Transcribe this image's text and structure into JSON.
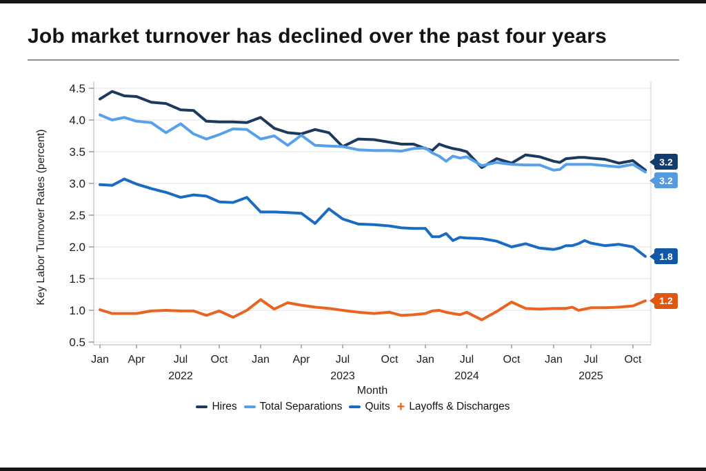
{
  "frame": {
    "title": "Job market turnover has declined over the past four years"
  },
  "chart": {
    "y_axis": {
      "label": "Key Labor Turnover Rates (percent)",
      "tick_labels": [
        "4.5",
        "4.0",
        "3.5",
        "3.0",
        "2.5",
        "2.0",
        "1.5",
        "1.0",
        "0.5"
      ],
      "tick_values": [
        4.5,
        4.0,
        3.5,
        3.0,
        2.5,
        2.0,
        1.5,
        1.0,
        0.5
      ]
    },
    "x_axis": {
      "label": "Month",
      "ticks": [
        {
          "label": "Jan",
          "month": 0
        },
        {
          "label": "Apr",
          "month": 3
        },
        {
          "label": "Jul",
          "month": 6
        },
        {
          "label": "Oct",
          "month": 9
        },
        {
          "label": "Jan",
          "month": 12
        },
        {
          "label": "Apr",
          "month": 15
        },
        {
          "label": "Jul",
          "month": 18
        },
        {
          "label": "Oct",
          "month": 21
        },
        {
          "label": "Jan",
          "month": 24
        },
        {
          "label": "Jul",
          "month": 30
        },
        {
          "label": "Oct",
          "month": 33
        },
        {
          "label": "Jan",
          "month": 36
        },
        {
          "label": "Jul",
          "month": 42
        },
        {
          "label": "Oct",
          "month": 45
        }
      ],
      "years": [
        {
          "label": "2022",
          "month": 6
        },
        {
          "label": "2023",
          "month": 18
        },
        {
          "label": "2024",
          "month": 30
        },
        {
          "label": "2025",
          "month": 42
        }
      ]
    },
    "legend": [
      {
        "name": "Hires",
        "marker": "line",
        "color": "#1c3a5e"
      },
      {
        "name": "Total Separations",
        "marker": "line",
        "color": "#57a1ea"
      },
      {
        "name": "Quits",
        "marker": "line",
        "color": "#1a6cc2"
      },
      {
        "name": "Layoffs & Discharges",
        "marker": "plus",
        "color": "#e96420"
      }
    ]
  },
  "chart_data": {
    "type": "line",
    "title": "Job market turnover has declined over the past four years",
    "xlabel": "Month",
    "ylabel": "Key Labor Turnover Rates (percent)",
    "ylim": [
      0.5,
      4.5
    ],
    "grid": true,
    "legend_position": "bottom",
    "x": [
      "Jan 2022",
      "Feb 2022",
      "Mar 2022",
      "Apr 2022",
      "May 2022",
      "Jun 2022",
      "Jul 2022",
      "Aug 2022",
      "Sep 2022",
      "Oct 2022",
      "Nov 2022",
      "Dec 2022",
      "Jan 2023",
      "Feb 2023",
      "Mar 2023",
      "Apr 2023",
      "May 2023",
      "Jun 2023",
      "Jul 2023",
      "Aug 2023",
      "Sep 2023",
      "Oct 2023",
      "Nov 2023",
      "Dec 2023",
      "Jan 2024",
      "Feb 2024",
      "Mar 2024",
      "Apr 2024",
      "May 2024",
      "Jun 2024",
      "Jul 2024",
      "Aug 2024",
      "Sep 2024",
      "Oct 2024",
      "Nov 2024",
      "Dec 2024",
      "Jan 2025",
      "Feb 2025",
      "Mar 2025",
      "Apr 2025",
      "May 2025",
      "Jun 2025",
      "Jul 2025",
      "Aug 2025",
      "Sep 2025",
      "Oct 2025",
      "Nov 2025"
    ],
    "series": [
      {
        "name": "Hires",
        "color": "#1c3a5e",
        "label_bg": "#103d6d",
        "end_label": "3.2",
        "values": [
          4.33,
          4.45,
          4.38,
          4.37,
          4.28,
          4.26,
          4.16,
          4.15,
          3.98,
          3.97,
          3.97,
          3.96,
          4.04,
          3.87,
          3.8,
          3.78,
          3.85,
          3.8,
          3.58,
          3.7,
          3.69,
          3.65,
          3.62,
          3.62,
          3.55,
          3.52,
          3.62,
          3.58,
          3.55,
          3.53,
          3.5,
          3.25,
          3.39,
          3.32,
          3.45,
          3.42,
          3.35,
          3.33,
          3.39,
          3.4,
          3.41,
          3.41,
          3.4,
          3.38,
          3.32,
          3.36,
          3.21
        ]
      },
      {
        "name": "Total Separations",
        "color": "#57a1ea",
        "label_bg": "#5599e0",
        "end_label": "3.2",
        "values": [
          4.08,
          4.0,
          4.04,
          3.98,
          3.96,
          3.8,
          3.94,
          3.78,
          3.7,
          3.77,
          3.86,
          3.85,
          3.7,
          3.75,
          3.6,
          3.76,
          3.6,
          3.59,
          3.58,
          3.53,
          3.52,
          3.52,
          3.51,
          3.55,
          3.56,
          3.48,
          3.43,
          3.35,
          3.43,
          3.4,
          3.42,
          3.28,
          3.33,
          3.3,
          3.29,
          3.29,
          3.21,
          3.22,
          3.3,
          3.3,
          3.3,
          3.3,
          3.3,
          3.28,
          3.26,
          3.3,
          3.18
        ]
      },
      {
        "name": "Quits",
        "color": "#1a6cc2",
        "label_bg": "#1157a8",
        "end_label": "1.8",
        "values": [
          2.98,
          2.97,
          3.07,
          2.99,
          2.92,
          2.86,
          2.78,
          2.82,
          2.8,
          2.71,
          2.7,
          2.78,
          2.55,
          2.55,
          2.54,
          2.53,
          2.37,
          2.6,
          2.44,
          2.36,
          2.35,
          2.33,
          2.3,
          2.29,
          2.29,
          2.16,
          2.16,
          2.21,
          2.1,
          2.15,
          2.14,
          2.13,
          2.09,
          2.0,
          2.05,
          1.98,
          1.96,
          1.98,
          2.02,
          2.02,
          2.05,
          2.1,
          2.06,
          2.02,
          2.04,
          2.0,
          1.85
        ]
      },
      {
        "name": "Layoffs & Discharges",
        "color": "#e96420",
        "label_bg": "#e05712",
        "end_label": "1.2",
        "values": [
          1.01,
          0.95,
          0.95,
          0.95,
          0.99,
          1.0,
          0.99,
          0.99,
          0.92,
          0.99,
          0.89,
          1.0,
          1.17,
          1.02,
          1.12,
          1.08,
          1.05,
          1.03,
          1.0,
          0.97,
          0.95,
          0.97,
          0.92,
          0.93,
          0.95,
          0.99,
          1.0,
          0.97,
          0.95,
          0.93,
          0.97,
          0.85,
          0.98,
          1.13,
          1.03,
          1.02,
          1.03,
          1.03,
          1.03,
          1.05,
          1.0,
          1.02,
          1.04,
          1.04,
          1.05,
          1.07,
          1.15
        ]
      }
    ]
  }
}
